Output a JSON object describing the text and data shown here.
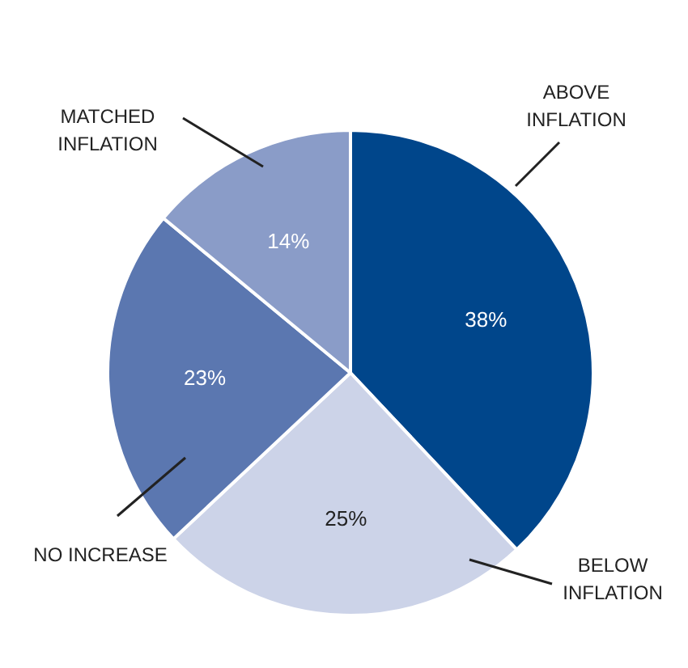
{
  "chart_data": {
    "type": "pie",
    "categories": [
      "ABOVE\nINFLATION",
      "BELOW\nINFLATION",
      "NO INCREASE",
      "MATCHED\nINFLATION"
    ],
    "values": [
      38,
      25,
      23,
      14
    ],
    "value_labels": [
      "38%",
      "25%",
      "23%",
      "14%"
    ],
    "colors": [
      "#00468b",
      "#ccd3e8",
      "#5b77b0",
      "#8a9cc8"
    ]
  }
}
